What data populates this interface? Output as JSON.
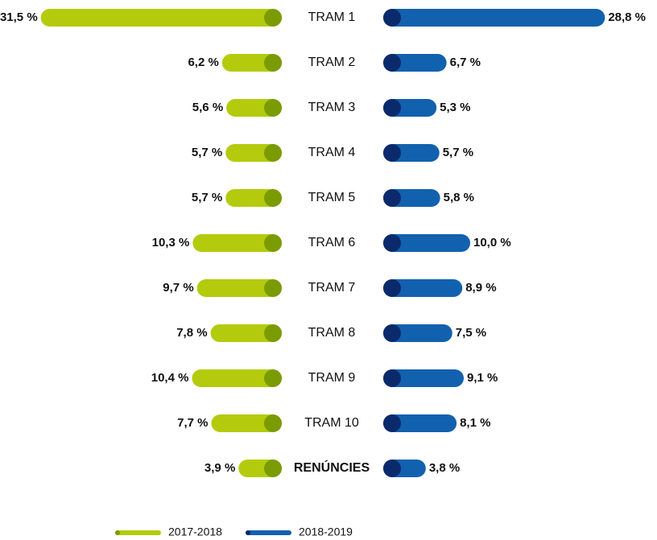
{
  "chart_data": {
    "type": "bar",
    "categories": [
      "TRAM 1",
      "TRAM 2",
      "TRAM 3",
      "TRAM 4",
      "TRAM 5",
      "TRAM 6",
      "TRAM 7",
      "TRAM 8",
      "TRAM 9",
      "TRAM 10",
      "RENÚNCIES"
    ],
    "series": [
      {
        "name": "2017-2018",
        "color": "#b3cb0c",
        "cap_color": "#7a9b02",
        "values": [
          31.5,
          6.2,
          5.6,
          5.7,
          5.7,
          10.3,
          9.7,
          7.8,
          10.4,
          7.7,
          3.9
        ],
        "value_labels": [
          "31,5 %",
          "6,2 %",
          "5,6 %",
          "5,7 %",
          "5,7 %",
          "10,3 %",
          "9,7 %",
          "7,8 %",
          "10,4 %",
          "7,7 %",
          "3,9 %"
        ]
      },
      {
        "name": "2018-2019",
        "color": "#1261ae",
        "cap_color": "#0b2a6c",
        "values": [
          28.8,
          6.7,
          5.3,
          5.7,
          5.8,
          10.0,
          8.9,
          7.5,
          9.1,
          8.1,
          3.8
        ],
        "value_labels": [
          "28,8 %",
          "6,7 %",
          "5,3 %",
          "5,7 %",
          "5,8 %",
          "10,0 %",
          "8,9 %",
          "7,5 %",
          "9,1 %",
          "8,1 %",
          "3,8 %"
        ]
      }
    ]
  }
}
